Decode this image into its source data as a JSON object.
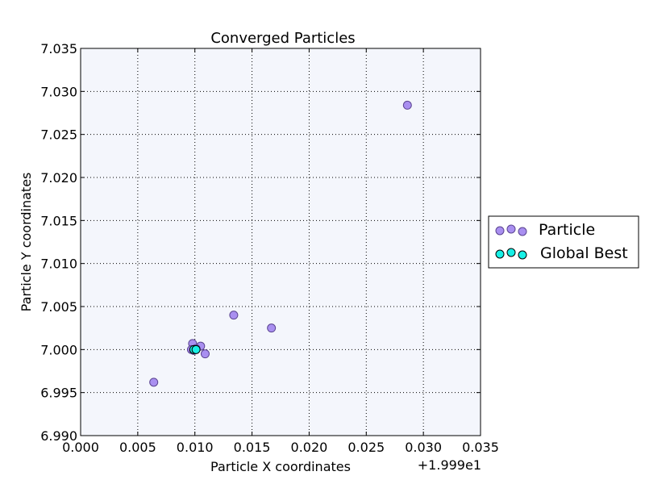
{
  "chart_data": {
    "type": "scatter",
    "title": "Converged Particles",
    "xlabel": "Particle X coordinates",
    "ylabel": "Particle Y coordinates",
    "x_offset_label": "+1.999e1",
    "xlim": [
      0.0,
      0.035
    ],
    "ylim": [
      6.99,
      7.035
    ],
    "x_ticks": [
      "0.000",
      "0.005",
      "0.010",
      "0.015",
      "0.020",
      "0.025",
      "0.030",
      "0.035"
    ],
    "y_ticks": [
      "6.990",
      "6.995",
      "7.000",
      "7.005",
      "7.010",
      "7.015",
      "7.020",
      "7.025",
      "7.030",
      "7.035"
    ],
    "grid": true,
    "legend_position": "outside-right",
    "plot_background": "#f4f6fc",
    "series": [
      {
        "name": "Particle",
        "color": "#a98ff0",
        "edge_color": "#5a4390",
        "points": [
          [
            0.0286,
            7.0284
          ],
          [
            0.0134,
            7.004
          ],
          [
            0.0167,
            7.0025
          ],
          [
            0.0098,
            7.0007
          ],
          [
            0.0105,
            7.0004
          ],
          [
            0.0109,
            6.9995
          ],
          [
            0.0064,
            6.9962
          ],
          [
            0.0097,
            7.0
          ],
          [
            0.0099,
            6.9999
          ],
          [
            0.0101,
            7.0001
          ]
        ]
      },
      {
        "name": "Global Best",
        "color": "#17f0e6",
        "edge_color": "#000000",
        "points": [
          [
            0.0099,
            7.0
          ],
          [
            0.0101,
            7.0
          ]
        ]
      }
    ]
  }
}
